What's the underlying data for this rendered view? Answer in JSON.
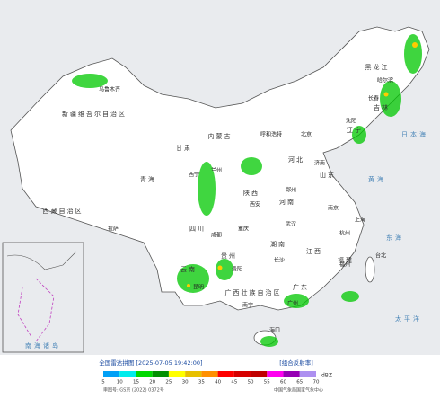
{
  "header": {
    "title": "全国雷达拼图 [2025-07-05 19:42:00]",
    "product": "[组合反射率]"
  },
  "legend": {
    "unit": "dBZ",
    "levels": [
      5,
      10,
      15,
      20,
      25,
      30,
      35,
      40,
      45,
      50,
      55,
      60,
      65,
      70
    ],
    "colors": [
      "#01a0f6",
      "#00ecec",
      "#00d800",
      "#019000",
      "#ffff00",
      "#e7c000",
      "#ff9000",
      "#ff0000",
      "#d60000",
      "#c00000",
      "#ff00f0",
      "#9600b4",
      "#ad90f0"
    ]
  },
  "footer": {
    "approval": "审图号: GS京 (2022) 0372号",
    "agency": "中国气象局国家气象中心"
  },
  "map": {
    "provinces": [
      "新疆维吾尔自治区",
      "西藏自治区",
      "青海",
      "内蒙古",
      "甘肃",
      "四川",
      "云南",
      "广西壮族自治区",
      "广东",
      "湖南",
      "河南",
      "山东",
      "黑龙江",
      "吉林",
      "辽宁",
      "河北",
      "陕西",
      "江西",
      "福建",
      "贵州"
    ],
    "cities": [
      "乌鲁木齐",
      "拉萨",
      "西宁",
      "兰州",
      "成都",
      "昆明",
      "南宁",
      "广州",
      "长沙",
      "武汉",
      "郑州",
      "济南",
      "北京",
      "呼和浩特",
      "哈尔滨",
      "长春",
      "沈阳",
      "上海",
      "杭州",
      "南京",
      "福州",
      "台北",
      "海口",
      "西安",
      "重庆",
      "贵阳"
    ],
    "seas": [
      "日本海",
      "黄海",
      "东海",
      "太平洋",
      "南海诸岛"
    ]
  }
}
